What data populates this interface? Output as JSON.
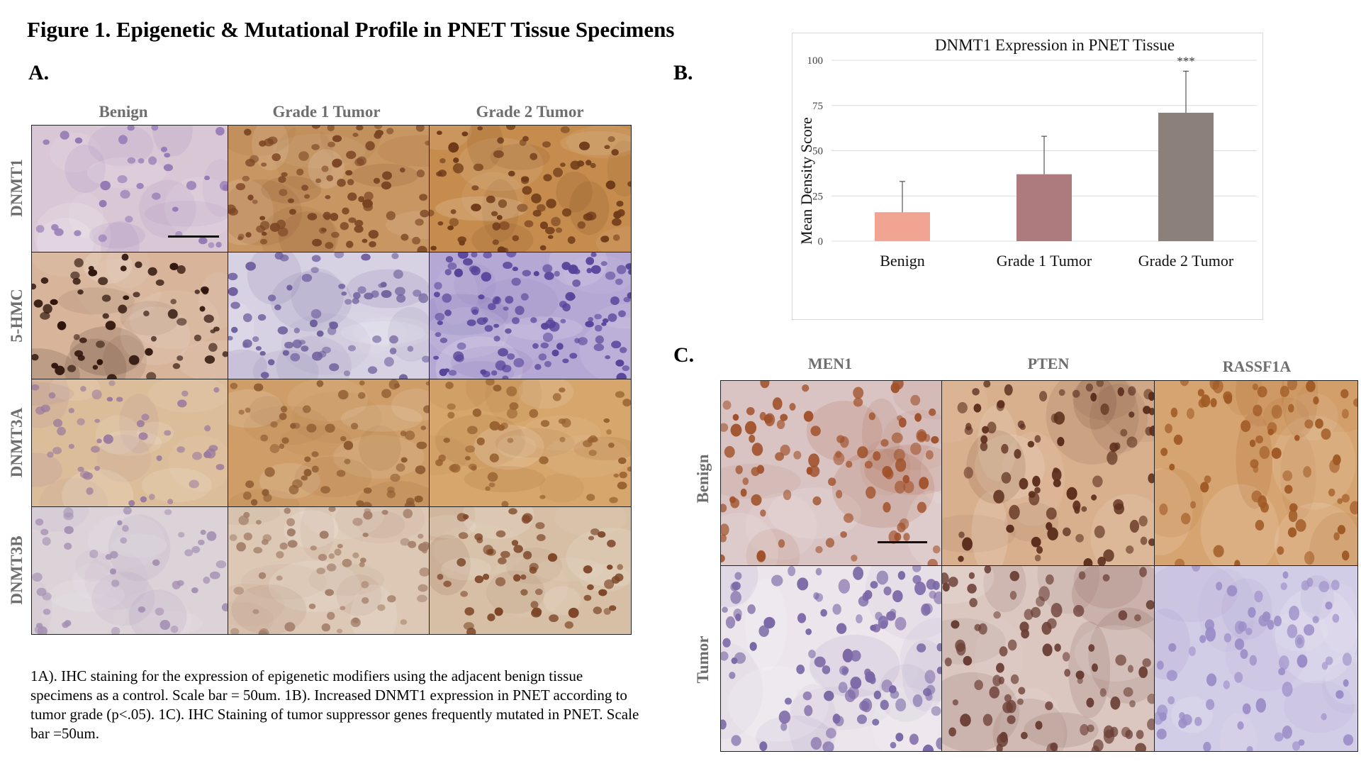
{
  "figure_title": "Figure 1. Epigenetic & Mutational Profile in PNET Tissue Specimens",
  "panel_a": {
    "letter": "A.",
    "columns": [
      "Benign",
      "Grade 1 Tumor",
      "Grade 2 Tumor"
    ],
    "rows": [
      "DNMT1",
      "5-HMC",
      "DNMT3A",
      "DNMT3B"
    ],
    "tiles": [
      [
        {
          "bg": "#d9c7d6",
          "nuc": "#9277b4",
          "n": 34
        },
        {
          "bg": "#c89662",
          "nuc": "#7a4423",
          "n": 95
        },
        {
          "bg": "#c58c4e",
          "nuc": "#6e3a18",
          "n": 80
        }
      ],
      [
        {
          "bg": "#d7b49a",
          "nuc": "#2e140b",
          "n": 60
        },
        {
          "bg": "#d7d2e3",
          "nuc": "#6f5f9d",
          "n": 70
        },
        {
          "bg": "#b6a8d4",
          "nuc": "#56439a",
          "n": 120
        }
      ],
      [
        {
          "bg": "#dcbd99",
          "nuc": "#9a7a9e",
          "n": 45
        },
        {
          "bg": "#cf9e68",
          "nuc": "#8d5a30",
          "n": 60
        },
        {
          "bg": "#d7a66c",
          "nuc": "#96602f",
          "n": 55
        }
      ],
      [
        {
          "bg": "#dcd3d9",
          "nuc": "#a490b2",
          "n": 45
        },
        {
          "bg": "#dcc8b5",
          "nuc": "#a37e69",
          "n": 65
        },
        {
          "bg": "#d6bfa5",
          "nuc": "#7d4526",
          "n": 60
        }
      ]
    ]
  },
  "panel_b": {
    "letter": "B."
  },
  "panel_c": {
    "letter": "C.",
    "columns": [
      "MEN1",
      "PTEN",
      "RASSF1A"
    ],
    "rows": [
      "Benign",
      "Tumor"
    ],
    "tiles": [
      [
        {
          "bg": "#d9c3c3",
          "nuc": "#a0512b",
          "n": 95
        },
        {
          "bg": "#d9b08e",
          "nuc": "#5c2e1c",
          "n": 85
        },
        {
          "bg": "#d6a470",
          "nuc": "#a05a25",
          "n": 70
        }
      ],
      [
        {
          "bg": "#ece6ec",
          "nuc": "#7a68a6",
          "n": 110
        },
        {
          "bg": "#dbc6c0",
          "nuc": "#6a3e34",
          "n": 90
        },
        {
          "bg": "#d2cde6",
          "nuc": "#9a8cc6",
          "n": 70
        }
      ]
    ]
  },
  "chart_data": {
    "type": "bar",
    "title": "DNMT1 Expression in PNET Tissue",
    "categories": [
      "Benign",
      "Grade 1 Tumor",
      "Grade 2 Tumor"
    ],
    "values": [
      16,
      37,
      71
    ],
    "error_plus": [
      17,
      21,
      23
    ],
    "colors": [
      "#f2a492",
      "#ad7b7e",
      "#8c807a"
    ],
    "ylabel": "Mean Density Score",
    "xlabel": "",
    "ylim": [
      0,
      100
    ],
    "yticks": [
      0,
      25,
      50,
      75,
      100
    ],
    "grid": true,
    "annotations": [
      {
        "category": "Grade 2 Tumor",
        "text": "***"
      }
    ]
  },
  "caption": "1A). IHC staining for the expression of epigenetic modifiers using the adjacent benign tissue specimens as a control. Scale bar = 50um. 1B). Increased DNMT1 expression in PNET according to tumor grade (p<.05). 1C). IHC Staining of tumor suppressor genes frequently mutated in PNET. Scale bar =50um."
}
